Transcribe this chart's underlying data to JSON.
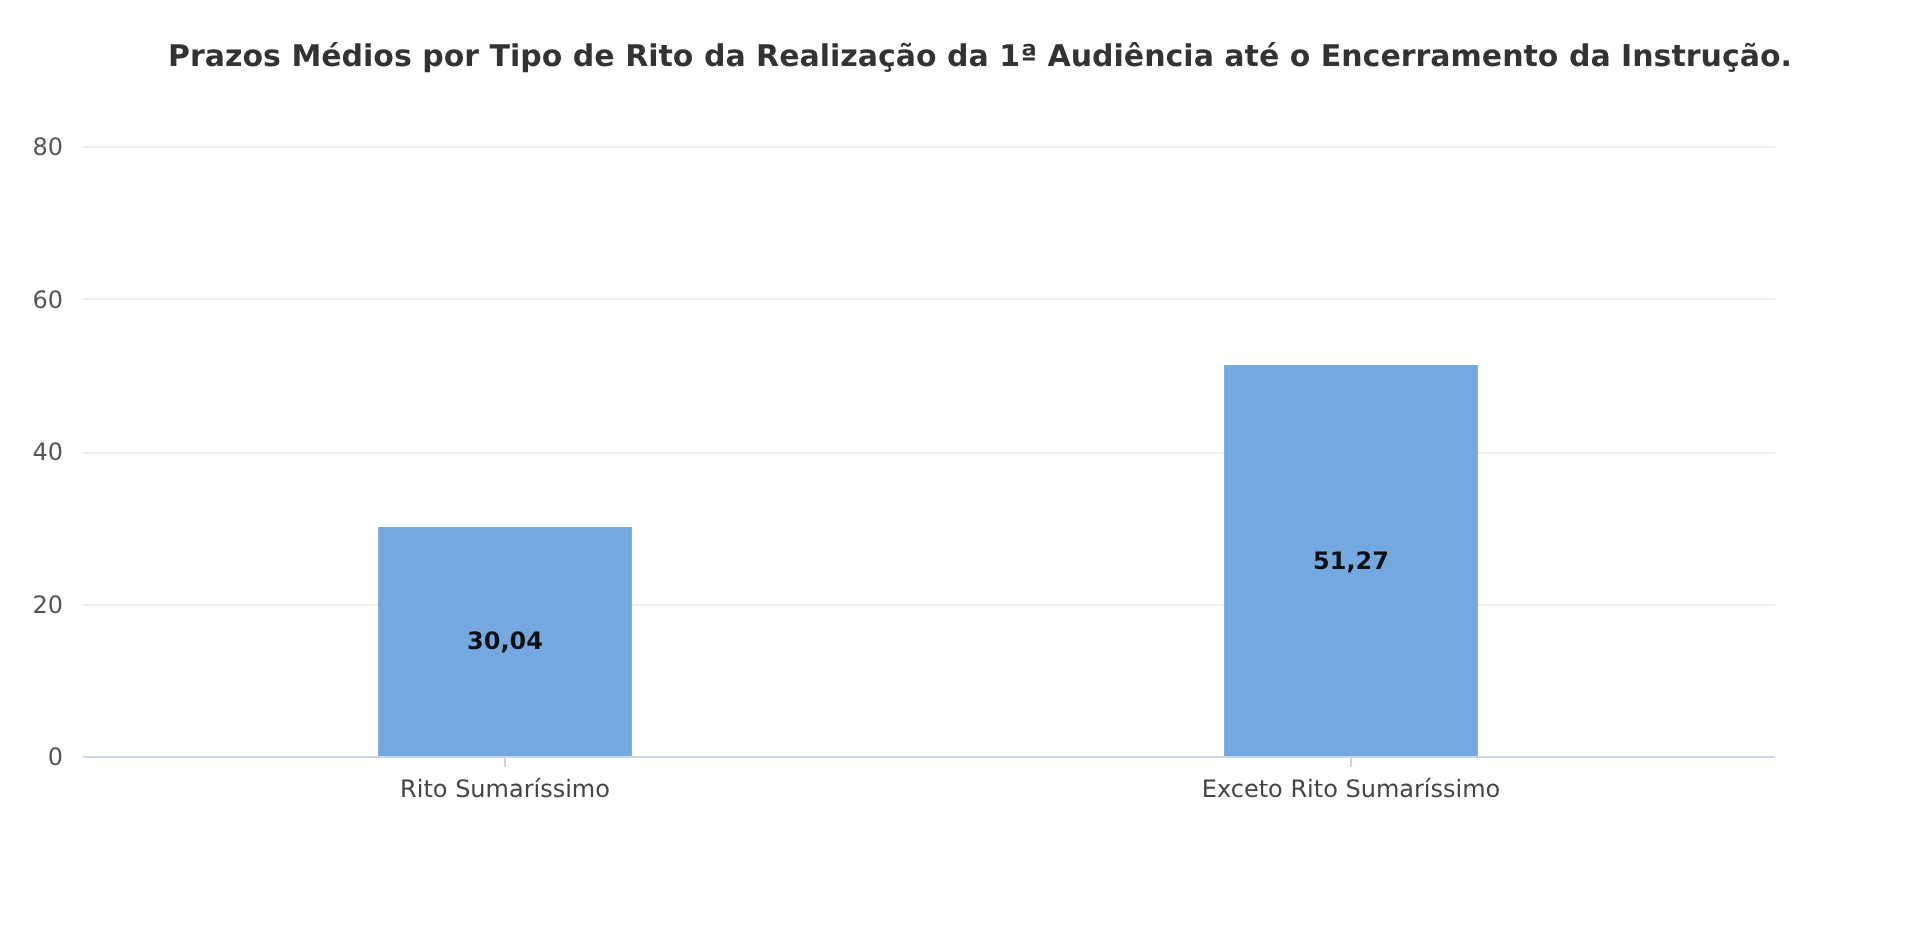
{
  "chart_data": {
    "type": "bar",
    "title": "Prazos Médios por Tipo de Rito da Realização da 1ª Audiência até o Encerramento da Instrução.",
    "categories": [
      "Rito Sumaríssimo",
      "Exceto Rito Sumaríssimo"
    ],
    "values": [
      30.04,
      51.27
    ],
    "color": "#73a8e0",
    "value_labels": [
      "30,04",
      "51,27"
    ],
    "ylim": [
      0,
      80
    ],
    "yticks": [
      0,
      20,
      40,
      60,
      80
    ],
    "grid": "y"
  }
}
